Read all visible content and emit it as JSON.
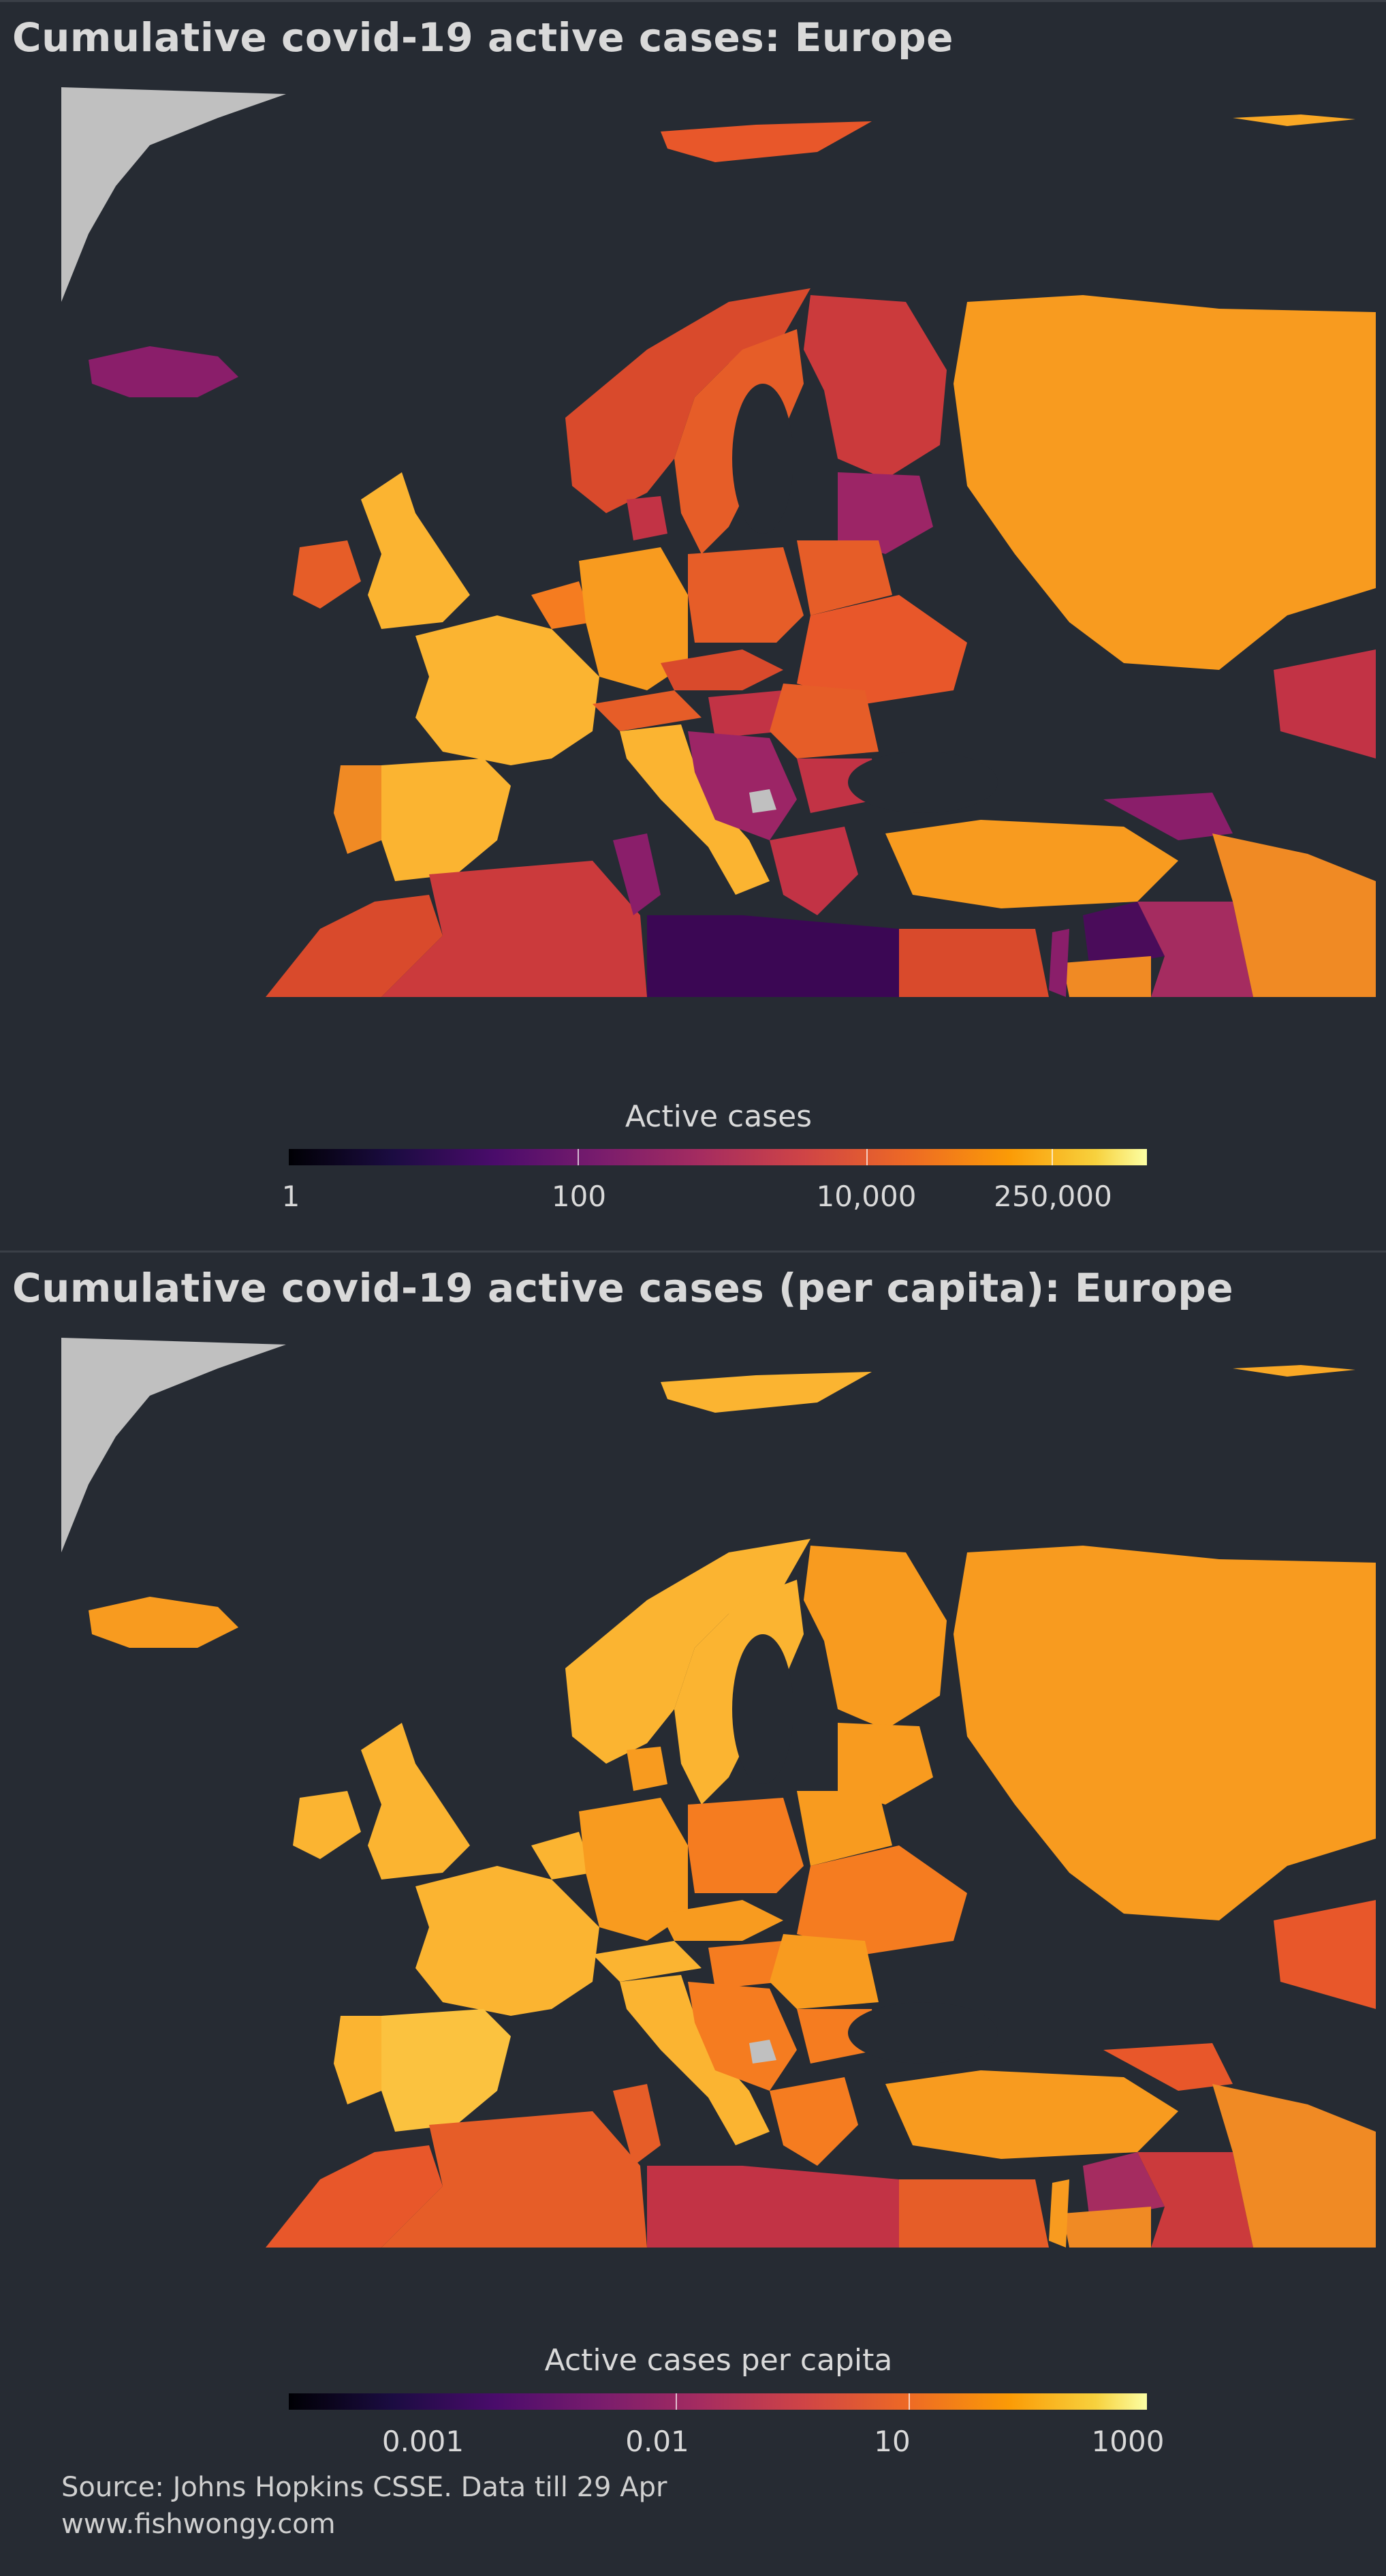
{
  "panel1": {
    "title": "Cumulative covid-19 active cases: Europe",
    "colorbar": {
      "title": "Active cases",
      "ticks": [
        "1",
        "100",
        "10,000",
        "250,000"
      ]
    }
  },
  "panel2": {
    "title": "Cumulative covid-19 active cases (per capita): Europe",
    "colorbar": {
      "title": "Active cases per capita",
      "ticks": [
        "0.001",
        "0.01",
        "10",
        "1000"
      ]
    }
  },
  "footer": {
    "source": "Source: Johns Hopkins CSSE. Data till 29 Apr",
    "website": "www.fishwongy.com"
  },
  "colors": {
    "background": "#262b33",
    "no_data": "#c0c0c0",
    "scale": "inferno"
  }
}
